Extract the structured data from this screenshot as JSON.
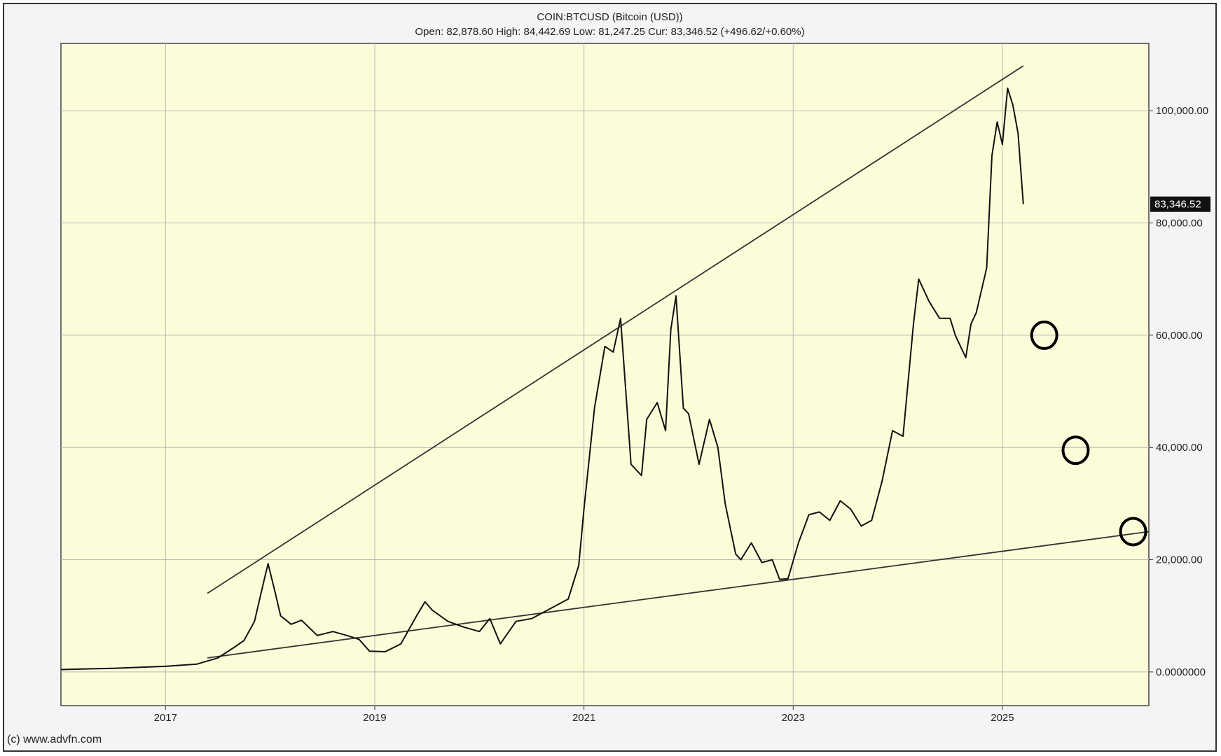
{
  "header": {
    "title": "COIN:BTCUSD (Bitcoin (USD))",
    "stats": "Open: 82,878.60 High: 84,442.69 Low: 81,247.25 Cur: 83,346.52 (+496.62/+0.60%)"
  },
  "footer": {
    "copyright": "(c) www.advfn.com"
  },
  "colors": {
    "plot_background": "#fdfcd9",
    "grid": "#b8b8b8",
    "price_line": "#111111",
    "trendline": "#333333",
    "current_price_badge_bg": "#111111",
    "current_price_badge_text": "#ffffff"
  },
  "chart_data": {
    "type": "line",
    "title": "COIN:BTCUSD (Bitcoin (USD))",
    "xlabel": "",
    "ylabel": "",
    "y_axis_position": "right",
    "grid": true,
    "xlim": [
      2016.0,
      2026.4
    ],
    "ylim": [
      -6000,
      112000
    ],
    "x_ticks": [
      2017,
      2019,
      2021,
      2023,
      2025
    ],
    "x_tick_labels": [
      "2017",
      "2019",
      "2021",
      "2023",
      "2025"
    ],
    "y_ticks": [
      0,
      20000,
      40000,
      60000,
      80000,
      100000
    ],
    "y_tick_labels": [
      "0.0000000",
      "20,000.00",
      "40,000.00",
      "60,000.00",
      "80,000.00",
      "100,000.00"
    ],
    "current_price": {
      "value": 83346.52,
      "label": "83,346.52"
    },
    "series": [
      {
        "x": [
          2016.0,
          2016.5,
          2017.0,
          2017.3,
          2017.5,
          2017.65,
          2017.75,
          2017.85,
          2017.95,
          2017.98,
          2018.05,
          2018.1,
          2018.2,
          2018.3,
          2018.45,
          2018.6,
          2018.75,
          2018.85,
          2018.95,
          2019.1,
          2019.25,
          2019.4,
          2019.48,
          2019.55,
          2019.7,
          2019.85,
          2020.0,
          2020.1,
          2020.2,
          2020.35,
          2020.5,
          2020.7,
          2020.85,
          2020.95,
          2021.0,
          2021.1,
          2021.2,
          2021.28,
          2021.35,
          2021.45,
          2021.55,
          2021.6,
          2021.7,
          2021.78,
          2021.83,
          2021.88,
          2021.95,
          2022.0,
          2022.1,
          2022.2,
          2022.28,
          2022.35,
          2022.45,
          2022.5,
          2022.6,
          2022.7,
          2022.8,
          2022.87,
          2022.95,
          2023.05,
          2023.15,
          2023.25,
          2023.35,
          2023.45,
          2023.55,
          2023.65,
          2023.75,
          2023.85,
          2023.95,
          2024.05,
          2024.15,
          2024.2,
          2024.3,
          2024.4,
          2024.5,
          2024.55,
          2024.6,
          2024.65,
          2024.7,
          2024.75,
          2024.8,
          2024.85,
          2024.9,
          2024.95,
          2025.0,
          2025.05,
          2025.1,
          2025.15,
          2025.2
        ],
        "y": [
          430,
          650,
          1000,
          1400,
          2500,
          4300,
          5600,
          9000,
          17000,
          19300,
          14000,
          10000,
          8500,
          9200,
          6500,
          7200,
          6400,
          5800,
          3700,
          3600,
          5000,
          10000,
          12500,
          11000,
          9000,
          8000,
          7200,
          9500,
          5000,
          9000,
          9500,
          11500,
          13000,
          19000,
          29000,
          47000,
          58000,
          57000,
          63000,
          37000,
          35000,
          45000,
          48000,
          43000,
          61000,
          67000,
          47000,
          46000,
          37000,
          45000,
          40000,
          30000,
          21000,
          20000,
          23000,
          19500,
          20000,
          16500,
          16600,
          23000,
          28000,
          28500,
          27000,
          30500,
          29000,
          26000,
          27000,
          34000,
          43000,
          42000,
          62000,
          70000,
          66000,
          63000,
          63000,
          60000,
          58000,
          56000,
          62000,
          64000,
          68000,
          72000,
          92000,
          98000,
          94000,
          104000,
          101000,
          96000,
          83346
        ]
      }
    ],
    "trendlines": [
      {
        "from": [
          2017.4,
          14000
        ],
        "to": [
          2025.2,
          108000
        ]
      },
      {
        "from": [
          2017.4,
          2500
        ],
        "to": [
          2026.4,
          25000
        ]
      }
    ],
    "annotations": [
      {
        "shape": "circle",
        "x": 2025.4,
        "y": 60000
      },
      {
        "shape": "circle",
        "x": 2025.7,
        "y": 39500
      },
      {
        "shape": "circle",
        "x": 2026.25,
        "y": 25000
      }
    ]
  }
}
